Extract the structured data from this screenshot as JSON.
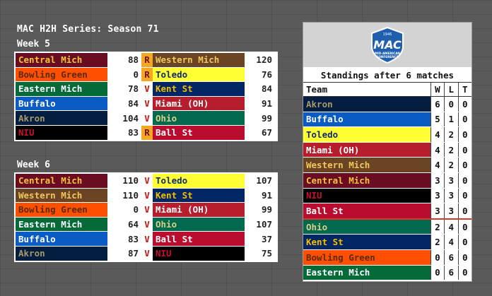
{
  "page": {
    "title": "MAC H2H Series: Season 71"
  },
  "weeks": [
    {
      "label": "Week 5",
      "games": [
        {
          "team1": "Central Mich",
          "team1_bg": "#6a0c22",
          "team1_fg": "#f3c43a",
          "score1": "88",
          "mark": "R",
          "team2": "Western Mich",
          "team2_bg": "#6b4423",
          "team2_fg": "#f1c75d",
          "score2": "120"
        },
        {
          "team1": "Bowling Green",
          "team1_bg": "#fe5000",
          "team1_fg": "#5a2a0a",
          "score1": "0",
          "mark": "R",
          "team2": "Toledo",
          "team2_bg": "#ffff33",
          "team2_fg": "#0b2a70",
          "score2": "76"
        },
        {
          "team1": "Eastern Mich",
          "team1_bg": "#046a38",
          "team1_fg": "#ffffff",
          "score1": "78",
          "mark": "V",
          "team2": "Kent St",
          "team2_bg": "#002664",
          "team2_fg": "#f7be00",
          "score2": "84"
        },
        {
          "team1": "Buffalo",
          "team1_bg": "#0a5bc4",
          "team1_fg": "#ffffff",
          "score1": "84",
          "mark": "V",
          "team2": "Miami (OH)",
          "team2_bg": "#b61e2e",
          "team2_fg": "#ffffff",
          "score2": "91"
        },
        {
          "team1": "Akron",
          "team1_bg": "#041e42",
          "team1_fg": "#a89968",
          "score1": "104",
          "mark": "V",
          "team2": "Ohio",
          "team2_bg": "#00694e",
          "team2_fg": "#dccf88",
          "score2": "99"
        },
        {
          "team1": "NIU",
          "team1_bg": "#000000",
          "team1_fg": "#c8102e",
          "score1": "83",
          "mark": "R",
          "team2": "Ball St",
          "team2_bg": "#ba0c2f",
          "team2_fg": "#ffffff",
          "score2": "67"
        }
      ]
    },
    {
      "label": "Week 6",
      "games": [
        {
          "team1": "Central Mich",
          "team1_bg": "#6a0c22",
          "team1_fg": "#f3c43a",
          "score1": "110",
          "mark": "V",
          "team2": "Toledo",
          "team2_bg": "#ffff33",
          "team2_fg": "#0b2a70",
          "score2": "107"
        },
        {
          "team1": "Western Mich",
          "team1_bg": "#6b4423",
          "team1_fg": "#f1c75d",
          "score1": "110",
          "mark": "V",
          "team2": "Kent St",
          "team2_bg": "#002664",
          "team2_fg": "#f7be00",
          "score2": "91"
        },
        {
          "team1": "Bowling Green",
          "team1_bg": "#fe5000",
          "team1_fg": "#5a2a0a",
          "score1": "0",
          "mark": "V",
          "team2": "Miami (OH)",
          "team2_bg": "#b61e2e",
          "team2_fg": "#ffffff",
          "score2": "99"
        },
        {
          "team1": "Eastern Mich",
          "team1_bg": "#046a38",
          "team1_fg": "#ffffff",
          "score1": "64",
          "mark": "V",
          "team2": "Ohio",
          "team2_bg": "#00694e",
          "team2_fg": "#dccf88",
          "score2": "107"
        },
        {
          "team1": "Buffalo",
          "team1_bg": "#0a5bc4",
          "team1_fg": "#ffffff",
          "score1": "83",
          "mark": "V",
          "team2": "Ball St",
          "team2_bg": "#ba0c2f",
          "team2_fg": "#ffffff",
          "score2": "37"
        },
        {
          "team1": "Akron",
          "team1_bg": "#041e42",
          "team1_fg": "#a89968",
          "score1": "87",
          "mark": "V",
          "team2": "NIU",
          "team2_bg": "#000000",
          "team2_fg": "#c8102e",
          "score2": "75"
        }
      ]
    }
  ],
  "standings": {
    "logo_top_text": "1946",
    "logo_letters": "MAC",
    "logo_sub1": "MID-AMERICAN",
    "logo_sub2": "CONFERENCE",
    "title": "Standings after 6 matches",
    "headers": {
      "team": "Team",
      "w": "W",
      "l": "L",
      "t": "T"
    },
    "rows": [
      {
        "team": "Akron",
        "bg": "#041e42",
        "fg": "#a89968",
        "w": "6",
        "l": "0",
        "t": "0"
      },
      {
        "team": "Buffalo",
        "bg": "#0a5bc4",
        "fg": "#ffffff",
        "w": "5",
        "l": "1",
        "t": "0"
      },
      {
        "team": "Toledo",
        "bg": "#ffff33",
        "fg": "#0b2a70",
        "w": "4",
        "l": "2",
        "t": "0"
      },
      {
        "team": "Miami (OH)",
        "bg": "#b61e2e",
        "fg": "#ffffff",
        "w": "4",
        "l": "2",
        "t": "0"
      },
      {
        "team": "Western Mich",
        "bg": "#6b4423",
        "fg": "#f1c75d",
        "w": "4",
        "l": "2",
        "t": "0"
      },
      {
        "team": "Central Mich",
        "bg": "#6a0c22",
        "fg": "#f3c43a",
        "w": "3",
        "l": "3",
        "t": "0"
      },
      {
        "team": "NIU",
        "bg": "#000000",
        "fg": "#c8102e",
        "w": "3",
        "l": "3",
        "t": "0"
      },
      {
        "team": "Ball St",
        "bg": "#ba0c2f",
        "fg": "#ffffff",
        "w": "3",
        "l": "3",
        "t": "0",
        "cutline": true
      },
      {
        "team": "Ohio",
        "bg": "#00694e",
        "fg": "#dccf88",
        "w": "2",
        "l": "4",
        "t": "0"
      },
      {
        "team": "Kent St",
        "bg": "#002664",
        "fg": "#f7be00",
        "w": "2",
        "l": "4",
        "t": "0"
      },
      {
        "team": "Bowling Green",
        "bg": "#fe5000",
        "fg": "#5a2a0a",
        "w": "0",
        "l": "6",
        "t": "0"
      },
      {
        "team": "Eastern Mich",
        "bg": "#046a38",
        "fg": "#ffffff",
        "w": "0",
        "l": "6",
        "t": "0"
      }
    ]
  }
}
